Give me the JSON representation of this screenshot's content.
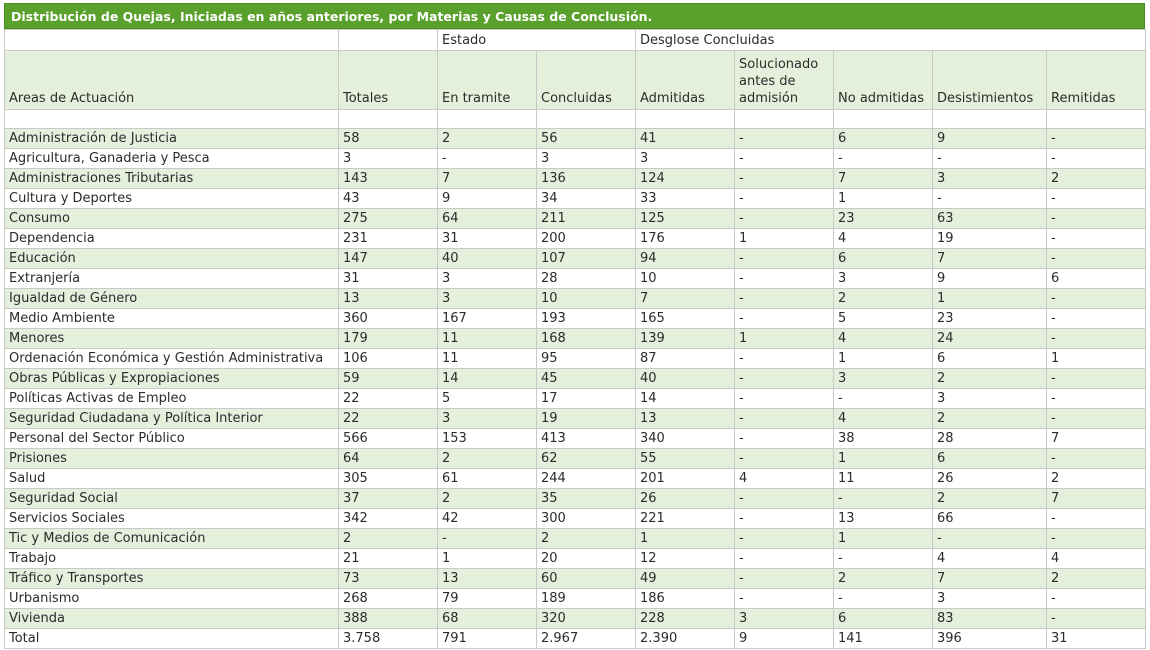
{
  "title": "Distribución de Quejas, Iniciadas en años anteriores, por Materias y Causas de Conclusión.",
  "group_headers": {
    "estado": "Estado",
    "desglose": "Desglose Concluidas"
  },
  "columns": [
    "Areas de Actuación",
    "Totales",
    "En tramite",
    "Concluidas",
    "Admitidas",
    "Solucionado antes de admisión",
    "No admitidas",
    "Desistimientos",
    "Remitidas"
  ],
  "rows": [
    [
      "Administración de Justicia",
      "58",
      "2",
      "56",
      "41",
      "-",
      "6",
      "9",
      "-"
    ],
    [
      "Agricultura, Ganaderia y Pesca",
      "3",
      "-",
      "3",
      "3",
      "-",
      "-",
      "-",
      "-"
    ],
    [
      "Administraciones Tributarias",
      "143",
      "7",
      "136",
      "124",
      "-",
      "7",
      "3",
      "2"
    ],
    [
      "Cultura y Deportes",
      "43",
      "9",
      "34",
      "33",
      "-",
      "1",
      "-",
      "-"
    ],
    [
      "Consumo",
      "275",
      "64",
      "211",
      "125",
      "-",
      "23",
      "63",
      "-"
    ],
    [
      "Dependencia",
      "231",
      "31",
      "200",
      "176",
      "1",
      "4",
      "19",
      "-"
    ],
    [
      "Educación",
      "147",
      "40",
      "107",
      "94",
      "-",
      "6",
      "7",
      "-"
    ],
    [
      "Extranjería",
      "31",
      "3",
      "28",
      "10",
      "-",
      "3",
      "9",
      "6"
    ],
    [
      "Igualdad de Género",
      "13",
      "3",
      "10",
      "7",
      "-",
      "2",
      "1",
      "-"
    ],
    [
      "Medio Ambiente",
      "360",
      "167",
      "193",
      "165",
      "-",
      "5",
      "23",
      "-"
    ],
    [
      "Menores",
      "179",
      "11",
      "168",
      "139",
      "1",
      "4",
      "24",
      "-"
    ],
    [
      "Ordenación Económica y Gestión Administrativa",
      "106",
      "11",
      "95",
      "87",
      "-",
      "1",
      "6",
      "1"
    ],
    [
      "Obras Públicas y Expropiaciones",
      "59",
      "14",
      "45",
      "40",
      "-",
      "3",
      "2",
      "-"
    ],
    [
      "Políticas Activas de Empleo",
      "22",
      "5",
      "17",
      "14",
      "-",
      "-",
      "3",
      "-"
    ],
    [
      "Seguridad Ciudadana y Política Interior",
      "22",
      "3",
      "19",
      "13",
      "-",
      "4",
      "2",
      "-"
    ],
    [
      "Personal del Sector Público",
      "566",
      "153",
      "413",
      "340",
      "-",
      "38",
      "28",
      "7"
    ],
    [
      "Prisiones",
      "64",
      "2",
      "62",
      "55",
      "-",
      "1",
      "6",
      "-"
    ],
    [
      "Salud",
      "305",
      "61",
      "244",
      "201",
      "4",
      "11",
      "26",
      "2"
    ],
    [
      "Seguridad Social",
      "37",
      "2",
      "35",
      "26",
      "-",
      "-",
      "2",
      "7"
    ],
    [
      "Servicios Sociales",
      "342",
      "42",
      "300",
      "221",
      "-",
      "13",
      "66",
      "-"
    ],
    [
      "Tic y Medios de Comunicación",
      "2",
      "-",
      "2",
      "1",
      "-",
      "1",
      "-",
      "-"
    ],
    [
      "Trabajo",
      "21",
      "1",
      "20",
      "12",
      "-",
      "-",
      "4",
      "4"
    ],
    [
      "Tráfico y Transportes",
      "73",
      "13",
      "60",
      "49",
      "-",
      "2",
      "7",
      "2"
    ],
    [
      "Urbanismo",
      "268",
      "79",
      "189",
      "186",
      "-",
      "-",
      "3",
      "-"
    ],
    [
      "Vivienda",
      "388",
      "68",
      "320",
      "228",
      "3",
      "6",
      "83",
      "-"
    ]
  ],
  "total": [
    "Total",
    "3.758",
    "791",
    "2.967",
    "2.390",
    "9",
    "141",
    "396",
    "31"
  ],
  "colors": {
    "header_green": "#5aa02c",
    "row_band": "#e4f0dc",
    "grid": "#c9c9c9"
  }
}
